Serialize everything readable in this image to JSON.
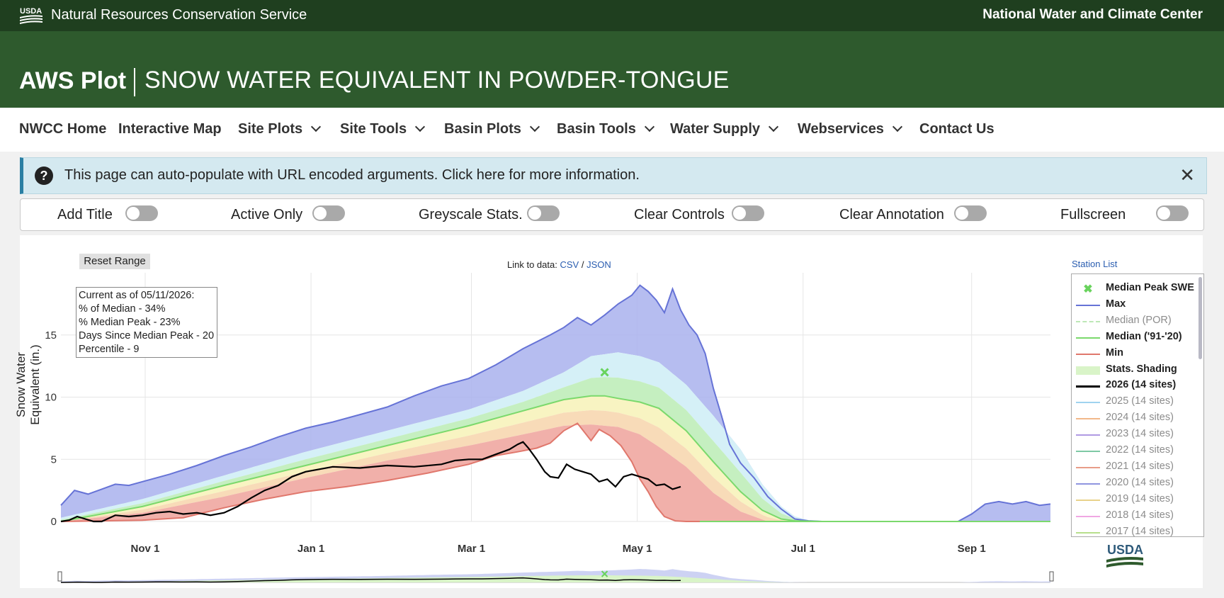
{
  "header": {
    "usda_logo_text": "USDA",
    "agency": "Natural Resources Conservation Service",
    "center": "National Water and Climate Center"
  },
  "hero": {
    "app_title": "AWS Plot",
    "subtitle": "SNOW WATER EQUIVALENT IN POWDER-TONGUE"
  },
  "nav": {
    "items": [
      {
        "label": "NWCC Home",
        "dropdown": false
      },
      {
        "label": "Interactive Map",
        "dropdown": false
      },
      {
        "label": "Site Plots",
        "dropdown": true
      },
      {
        "label": "Site Tools",
        "dropdown": true
      },
      {
        "label": "Basin Plots",
        "dropdown": true
      },
      {
        "label": "Basin Tools",
        "dropdown": true
      },
      {
        "label": "Water Supply",
        "dropdown": true
      },
      {
        "label": "Webservices",
        "dropdown": true
      },
      {
        "label": "Contact Us",
        "dropdown": false
      }
    ]
  },
  "alert": {
    "icon": "question-circle-icon",
    "message": "This page can auto-populate with URL encoded arguments. Click here for more information.",
    "close_symbol": "✕"
  },
  "controls": [
    {
      "label": "Add Title",
      "on": false
    },
    {
      "label": "Active Only",
      "on": false
    },
    {
      "label": "Greyscale Stats.",
      "on": false
    },
    {
      "label": "Clear Controls",
      "on": false
    },
    {
      "label": "Clear Annotation",
      "on": false
    },
    {
      "label": "Fullscreen",
      "on": false
    }
  ],
  "plot": {
    "reset_label": "Reset Range",
    "link_prefix": "Link to data:",
    "link_csv": "CSV",
    "link_sep": "/",
    "link_json": "JSON",
    "annotation": [
      "Current as of 05/11/2026:",
      "% of Median - 34%",
      "% Median Peak - 23%",
      "Days Since Median Peak - 20",
      "Percentile - 9"
    ],
    "station_list_label": "Station List",
    "bottom_logo_text": "USDA"
  },
  "chart_data": {
    "type": "area",
    "ylabel": "Snow Water Equivalent (in.)",
    "ylim": [
      0,
      20
    ],
    "yticks": [
      0,
      5,
      10,
      15
    ],
    "x_tick_labels": [
      "Nov 1",
      "Jan 1",
      "Mar 1",
      "May 1",
      "Jul 1",
      "Sep 1"
    ],
    "x_unit": "day of water year (Oct 1 = 0)",
    "x_tick_days": [
      31,
      92,
      151,
      212,
      273,
      335
    ],
    "xlim": [
      0,
      364
    ],
    "grid": true,
    "legend_position": "right",
    "legend": [
      {
        "name": "Median Peak SWE",
        "color": "#69d35d",
        "style": "x-marker",
        "dim": false
      },
      {
        "name": "Max",
        "color": "#6673d6",
        "style": "line",
        "dim": false
      },
      {
        "name": "Median (POR)",
        "color": "#bde8b6",
        "style": "dash",
        "dim": true
      },
      {
        "name": "Median ('91-'20)",
        "color": "#7bd96c",
        "style": "line",
        "dim": false
      },
      {
        "name": "Min",
        "color": "#e0776c",
        "style": "line",
        "dim": false
      },
      {
        "name": "Stats. Shading",
        "color": "#d9f4c8",
        "style": "band",
        "dim": false
      },
      {
        "name": "2026 (14 sites)",
        "color": "#000000",
        "style": "line",
        "dim": false,
        "bold": true
      },
      {
        "name": "2025 (14 sites)",
        "color": "#9fd3ef",
        "style": "line",
        "dim": true
      },
      {
        "name": "2024 (14 sites)",
        "color": "#f2b88a",
        "style": "line",
        "dim": true
      },
      {
        "name": "2023 (14 sites)",
        "color": "#b09ae3",
        "style": "line",
        "dim": true
      },
      {
        "name": "2022 (14 sites)",
        "color": "#7ec9a5",
        "style": "line",
        "dim": true
      },
      {
        "name": "2021 (14 sites)",
        "color": "#e89d89",
        "style": "line",
        "dim": true
      },
      {
        "name": "2020 (14 sites)",
        "color": "#8f95e0",
        "style": "line",
        "dim": true
      },
      {
        "name": "2019 (14 sites)",
        "color": "#e8d28a",
        "style": "line",
        "dim": true
      },
      {
        "name": "2018 (14 sites)",
        "color": "#f0a7e3",
        "style": "line",
        "dim": true
      },
      {
        "name": "2017 (14 sites)",
        "color": "#b7df8c",
        "style": "line",
        "dim": true
      }
    ],
    "median_peak": {
      "day": 200,
      "value": 12.0
    },
    "max": {
      "x": [
        0,
        5,
        10,
        15,
        20,
        25,
        30,
        40,
        50,
        60,
        70,
        80,
        90,
        100,
        110,
        120,
        130,
        140,
        150,
        160,
        170,
        180,
        185,
        190,
        195,
        200,
        205,
        210,
        213,
        216,
        219,
        222,
        225,
        228,
        231,
        234,
        237,
        240,
        243,
        246,
        250,
        255,
        260,
        265,
        270,
        275,
        280,
        290,
        300,
        330,
        335,
        340,
        345,
        350,
        355,
        360,
        364
      ],
      "values": [
        1.3,
        2.5,
        2.2,
        2.6,
        3.0,
        2.9,
        3.2,
        3.8,
        4.5,
        5.3,
        6.0,
        6.8,
        7.5,
        8.0,
        8.6,
        9.2,
        10.1,
        10.9,
        11.5,
        12.6,
        13.9,
        15.0,
        15.6,
        16.4,
        15.8,
        16.6,
        17.5,
        18.2,
        19.0,
        18.5,
        17.8,
        16.8,
        18.7,
        17.0,
        15.8,
        15.0,
        13.5,
        10.7,
        8.5,
        6.2,
        4.7,
        3.5,
        2.0,
        1.0,
        0.2,
        0.05,
        0.0,
        0.0,
        0.0,
        0.0,
        0.6,
        1.4,
        1.6,
        1.4,
        1.6,
        1.3,
        1.4
      ]
    },
    "band_upper": {
      "x": [
        0,
        30,
        60,
        90,
        120,
        150,
        170,
        185,
        195,
        205,
        213,
        220,
        230,
        240,
        250,
        258,
        265,
        270,
        275,
        280,
        364
      ],
      "values": [
        0.3,
        1.8,
        3.7,
        5.6,
        7.3,
        9.0,
        10.5,
        12.0,
        13.3,
        13.6,
        13.3,
        12.8,
        11.0,
        8.5,
        5.8,
        3.0,
        1.2,
        0.4,
        0.1,
        0.0,
        0.0
      ]
    },
    "median": {
      "x": [
        0,
        30,
        60,
        90,
        120,
        150,
        170,
        185,
        195,
        200,
        205,
        213,
        220,
        230,
        240,
        250,
        258,
        265,
        270,
        280,
        364
      ],
      "values": [
        0.0,
        1.2,
        2.9,
        4.5,
        6.1,
        7.7,
        8.9,
        9.8,
        10.1,
        10.1,
        9.9,
        9.6,
        9.1,
        7.3,
        4.8,
        2.4,
        0.9,
        0.2,
        0.05,
        0.0,
        0.0
      ]
    },
    "band_lower": {
      "x": [
        0,
        30,
        60,
        90,
        120,
        150,
        170,
        185,
        195,
        205,
        213,
        220,
        230,
        240,
        250,
        260,
        364
      ],
      "values": [
        0.0,
        0.7,
        2.0,
        3.5,
        4.9,
        6.1,
        7.0,
        7.7,
        7.8,
        7.6,
        7.0,
        6.0,
        4.4,
        2.3,
        0.8,
        0.0,
        0.0
      ]
    },
    "min": {
      "x": [
        0,
        30,
        45,
        60,
        75,
        90,
        105,
        120,
        135,
        150,
        160,
        168,
        175,
        180,
        185,
        190,
        195,
        198,
        202,
        206,
        210,
        213,
        216,
        219,
        222,
        226,
        230,
        235,
        240,
        364
      ],
      "values": [
        0.0,
        0.1,
        0.3,
        1.1,
        1.8,
        2.4,
        2.8,
        3.3,
        3.9,
        4.6,
        5.3,
        5.6,
        5.9,
        6.3,
        7.3,
        7.9,
        6.5,
        7.4,
        6.9,
        6.1,
        4.8,
        3.4,
        2.4,
        1.2,
        0.4,
        0.05,
        0.0,
        0.0,
        0.0,
        0.0
      ]
    },
    "current": {
      "x": [
        0,
        3,
        6,
        9,
        12,
        15,
        20,
        25,
        30,
        35,
        40,
        45,
        50,
        55,
        60,
        65,
        70,
        75,
        80,
        85,
        90,
        95,
        100,
        110,
        120,
        130,
        140,
        145,
        150,
        155,
        160,
        165,
        168,
        170,
        172,
        175,
        178,
        180,
        183,
        186,
        189,
        192,
        195,
        198,
        201,
        204,
        207,
        210,
        213,
        216,
        219,
        222,
        225,
        228
      ],
      "values": [
        0.0,
        0.1,
        0.4,
        0.2,
        0.0,
        0.0,
        0.5,
        0.4,
        0.5,
        0.7,
        0.8,
        0.6,
        0.7,
        0.5,
        0.7,
        1.2,
        1.9,
        2.5,
        2.9,
        3.6,
        4.0,
        4.2,
        4.4,
        4.3,
        4.5,
        4.4,
        4.6,
        4.9,
        5.0,
        5.0,
        5.4,
        5.8,
        6.2,
        6.4,
        5.9,
        5.0,
        4.0,
        3.6,
        3.5,
        4.6,
        4.2,
        4.0,
        3.8,
        3.2,
        3.4,
        2.8,
        3.6,
        3.8,
        3.6,
        3.4,
        2.9,
        3.0,
        2.6,
        2.8
      ]
    }
  }
}
